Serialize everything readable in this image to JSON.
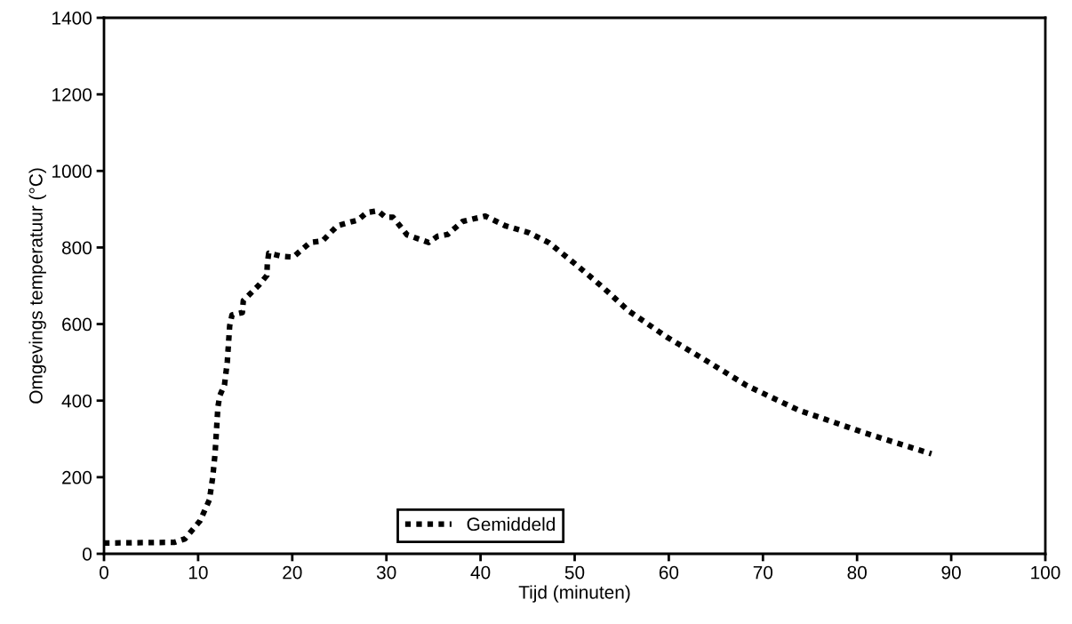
{
  "chart_data": {
    "type": "line",
    "xlabel": "Tijd (minuten)",
    "ylabel": "Omgevings temperatuur (°C)",
    "xlim": [
      0,
      100
    ],
    "xticks": [
      0,
      10,
      20,
      30,
      40,
      50,
      60,
      70,
      80,
      90,
      100
    ],
    "ylim": [
      0,
      1400
    ],
    "yticks": [
      0,
      200,
      400,
      600,
      800,
      1000,
      1200,
      1400
    ],
    "grid": false,
    "legend": "bottom",
    "line_style": "dotted",
    "marker": "none",
    "series": [
      {
        "name": "Gemiddeld",
        "color": "#000000",
        "x": [
          0,
          7.5,
          8.6,
          10.2,
          11.2,
          11.55,
          11.8,
          12.1,
          12.3,
          12.8,
          13.1,
          13.35,
          13.6,
          14.7,
          14.8,
          16.5,
          17.3,
          17.35,
          17.5,
          18.9,
          20.1,
          21.9,
          23.2,
          24.8,
          27.0,
          27.9,
          29.1,
          29.9,
          30.7,
          32.2,
          34.5,
          35.4,
          36.5,
          38.1,
          40.5,
          42.7,
          45.1,
          47.3,
          50.2,
          53.0,
          55.7,
          59.8,
          64.0,
          68.3,
          73.8,
          75.0,
          80.9,
          87.9
        ],
        "values": [
          28,
          30,
          39,
          86,
          141,
          200,
          262,
          383,
          413,
          441,
          502,
          595,
          624,
          630,
          661,
          703,
          727,
          758,
          785,
          777,
          775,
          813,
          817,
          857,
          872,
          891,
          896,
          879,
          879,
          833,
          813,
          829,
          834,
          868,
          882,
          856,
          839,
          812,
          754,
          696,
          635,
          566,
          504,
          439,
          375,
          365,
          315,
          261
        ]
      }
    ]
  }
}
